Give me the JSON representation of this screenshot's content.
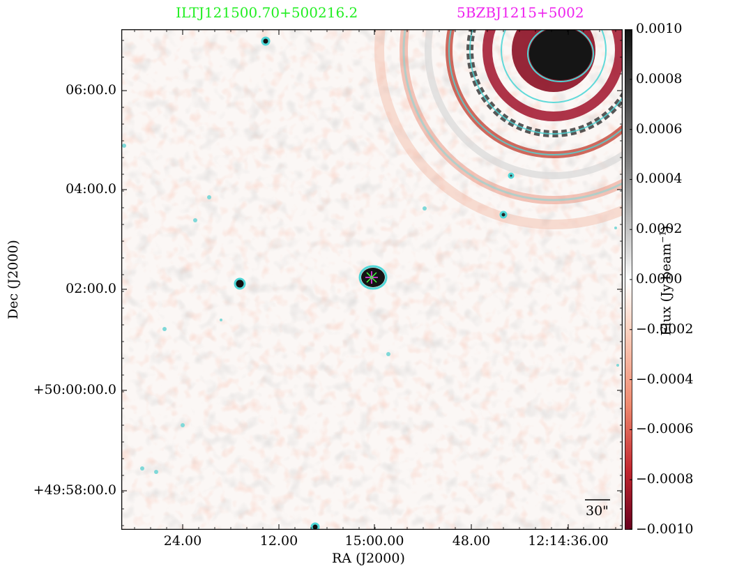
{
  "titles": {
    "left": "ILTJ121500.70+500216.2",
    "right": "5BZBJ1215+5002",
    "left_color": "#22ee22",
    "right_color": "#ee22ee"
  },
  "axes": {
    "xlabel": "RA (J2000)",
    "ylabel": "Dec (J2000)",
    "xticks": [
      "24.00",
      "12.00",
      "15:00.00",
      "48.00",
      "12:14:36.00"
    ],
    "yticks": [
      "06:00.0",
      "04:00.0",
      "02:00.0",
      "+50:00:00.0",
      "+49:58:00.0"
    ]
  },
  "colorbar": {
    "label": "Flux (Jy beam",
    "label_sup": "−1",
    "label_close": ")",
    "ticks": [
      "0.0010",
      "0.0008",
      "0.0006",
      "0.0004",
      "0.0002",
      "0.0000",
      "−0.0002",
      "−0.0004",
      "−0.0006",
      "−0.0008",
      "−0.0010"
    ],
    "vmin": -0.001,
    "vmax": 0.001
  },
  "scalebar": {
    "label": "30\""
  },
  "colors": {
    "contour": "#4fd6d6",
    "marker": "#ff44ff",
    "marker2": "#44ff44"
  }
}
